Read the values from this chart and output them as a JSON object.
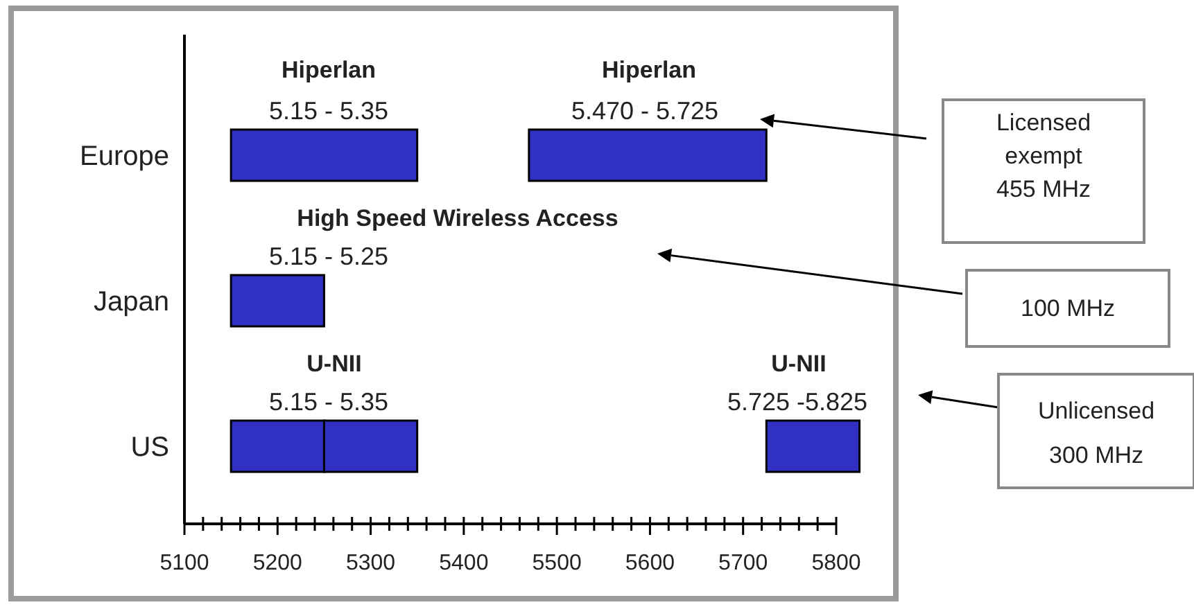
{
  "chart_data": {
    "type": "bar",
    "orientation": "horizontal",
    "categories": [
      "Europe",
      "Japan",
      "US"
    ],
    "series": [
      {
        "color": "#3030c4",
        "base": [
          5150,
          5150,
          5150
        ],
        "values": [
          200,
          100,
          100
        ]
      },
      {
        "color": "#3030c4",
        "base": [
          5470,
          null,
          5250
        ],
        "values": [
          255,
          null,
          100
        ]
      },
      {
        "color": "#3030c4",
        "base": [
          null,
          null,
          5725
        ],
        "values": [
          null,
          null,
          100
        ]
      }
    ],
    "xlim": [
      5100,
      5800
    ],
    "xticks": [
      5100,
      {
        "value": 5120,
        "label": null
      },
      {
        "value": 5140,
        "label": null
      },
      {
        "value": 5160,
        "label": null
      },
      {
        "value": 5180,
        "label": null
      },
      5200,
      {
        "value": 5220,
        "label": null
      },
      {
        "value": 5240,
        "label": null
      },
      {
        "value": 5260,
        "label": null
      },
      {
        "value": 5280,
        "label": null
      },
      5300,
      {
        "value": 5320,
        "label": null
      },
      {
        "value": 5340,
        "label": null
      },
      {
        "value": 5360,
        "label": null
      },
      {
        "value": 5380,
        "label": null
      },
      5400,
      {
        "value": 5420,
        "label": null
      },
      {
        "value": 5440,
        "label": null
      },
      {
        "value": 5460,
        "label": null
      },
      {
        "value": 5480,
        "label": null
      },
      5500,
      {
        "value": 5520,
        "label": null
      },
      {
        "value": 5540,
        "label": null
      },
      {
        "value": 5560,
        "label": null
      },
      {
        "value": 5580,
        "label": null
      },
      5600,
      {
        "value": 5620,
        "label": null
      },
      {
        "value": 5640,
        "label": null
      },
      {
        "value": 5660,
        "label": null
      },
      {
        "value": 5680,
        "label": null
      },
      5700,
      {
        "value": 5720,
        "label": null
      },
      {
        "value": 5740,
        "label": null
      },
      {
        "value": 5760,
        "label": null
      },
      {
        "value": 5780,
        "label": null
      },
      5800
    ],
    "annotations": [
      "Hiperlan",
      "5.15 - 5.35",
      "Hiperlan",
      "5.470 - 5.725",
      "High Speed Wireless Access",
      "5.15 - 5.25",
      "U-NII",
      "5.15 - 5.35",
      "U-NII",
      "5.725 -5.825",
      "Licensed\nexempt\n455 MHz",
      "100 MHz",
      "Unlicensed\n300 MHz"
    ]
  }
}
